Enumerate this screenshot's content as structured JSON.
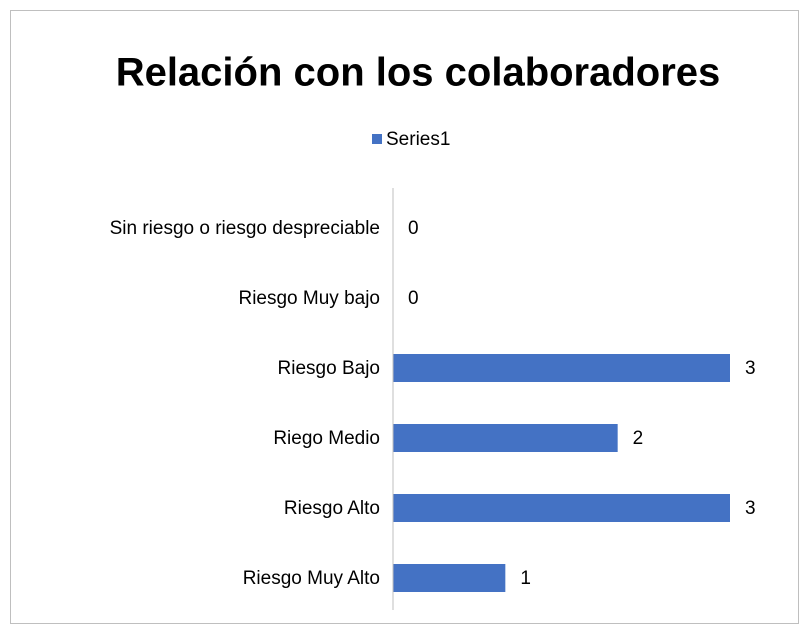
{
  "chart_data": {
    "type": "barh",
    "title": "Relación con los colaboradores",
    "categories": [
      "Sin riesgo o riesgo despreciable",
      "Riesgo Muy bajo",
      "Riesgo Bajo",
      "Riego Medio",
      "Riesgo Alto",
      "Riesgo Muy Alto"
    ],
    "series": [
      {
        "name": "Series1",
        "color": "#4472c4",
        "values": [
          0,
          0,
          3,
          2,
          3,
          1
        ]
      }
    ],
    "xlim": [
      0,
      3
    ],
    "legend": "top"
  }
}
